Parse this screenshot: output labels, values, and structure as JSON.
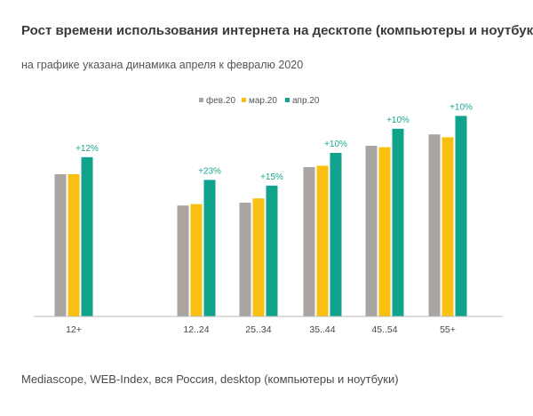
{
  "title": "Рост времени использования интернета на десктопе (компьютеры и ноутбуки)",
  "subtitle": "на графике указана динамика апреля к февралю 2020",
  "source": "Mediascope, WEB-Index, вся Россия, desktop (компьютеры и ноутбуки)",
  "colors": {
    "feb": "#aaa5a0",
    "mar": "#f9c012",
    "apr": "#12a38c",
    "axis": "#bbbbbb",
    "annotation": "#1aa58e"
  },
  "chart_data": {
    "type": "bar",
    "categories": [
      "12+",
      "12..24",
      "25..34",
      "35..44",
      "45..54",
      "55+"
    ],
    "series": [
      {
        "name": "фев.20",
        "values": [
          100,
          78,
          80,
          105,
          120,
          128
        ]
      },
      {
        "name": "мар.20",
        "values": [
          100,
          79,
          83,
          106,
          119,
          126
        ]
      },
      {
        "name": "апр.20",
        "values": [
          112,
          96,
          92,
          115,
          132,
          141
        ]
      }
    ],
    "annotations": [
      "+12%",
      "+23%",
      "+15%",
      "+10%",
      "+10%",
      "+10%"
    ],
    "title": "Рост времени использования интернета на десктопе (компьютеры и ноутбуки)",
    "xlabel": "",
    "ylabel": "",
    "ylim": [
      0,
      160
    ],
    "grid": false,
    "legend": "top-center"
  }
}
